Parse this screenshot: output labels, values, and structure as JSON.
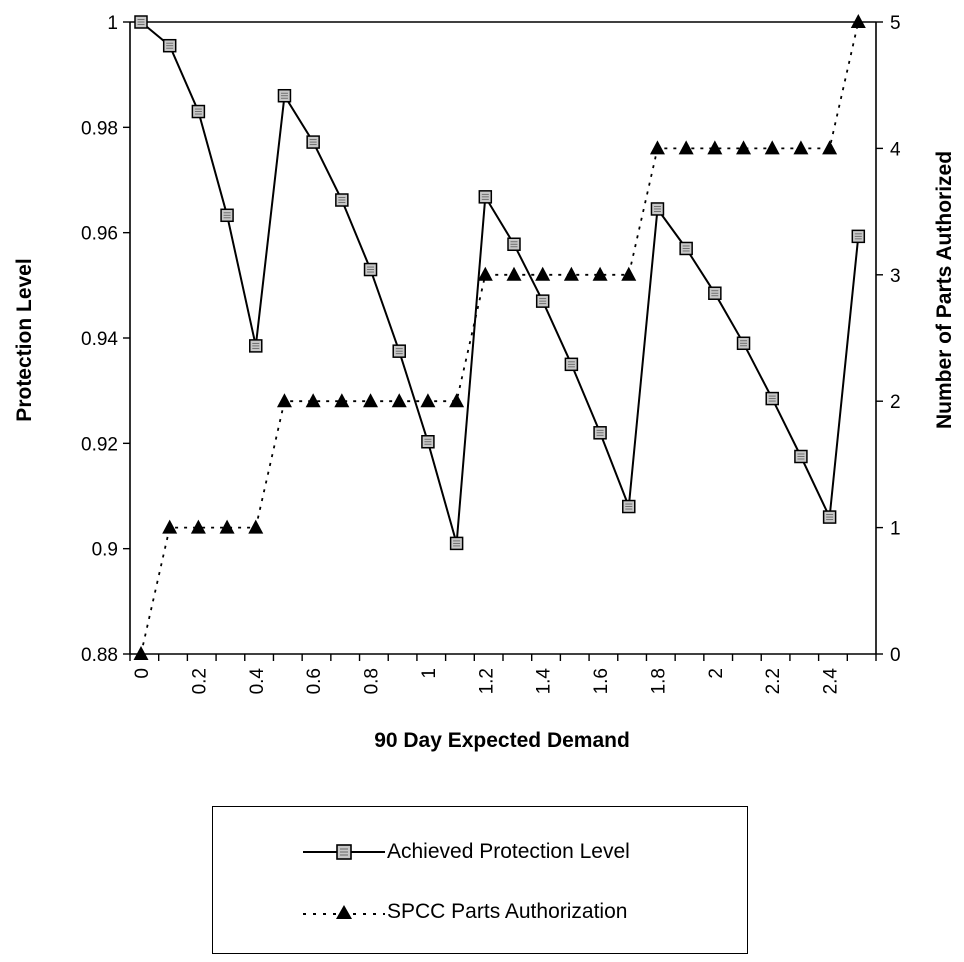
{
  "chart_data": {
    "type": "line",
    "xlabel": "90 Day Expected Demand",
    "ylabel_left": "Protection Level",
    "ylabel_right": "Number of Parts Authorized",
    "x": [
      0,
      0.1,
      0.2,
      0.3,
      0.4,
      0.5,
      0.6,
      0.7,
      0.8,
      0.9,
      1.0,
      1.1,
      1.2,
      1.3,
      1.4,
      1.5,
      1.6,
      1.7,
      1.8,
      1.9,
      2.0,
      2.1,
      2.2,
      2.3,
      2.4,
      2.5
    ],
    "x_tick_labels": [
      "0",
      "0.2",
      "0.4",
      "0.6",
      "0.8",
      "1",
      "1.2",
      "1.4",
      "1.6",
      "1.8",
      "2",
      "2.2",
      "2.4"
    ],
    "y_left_ticks": [
      "0.88",
      "0.9",
      "0.92",
      "0.94",
      "0.96",
      "0.98",
      "1"
    ],
    "y_right_ticks": [
      "0",
      "1",
      "2",
      "3",
      "4",
      "5"
    ],
    "ylim_left": [
      0.88,
      1.0
    ],
    "ylim_right": [
      0,
      5
    ],
    "grid": false,
    "series": [
      {
        "name": "Achieved Protection Level",
        "axis": "left",
        "style": "solid-square-markers",
        "values": [
          1.0,
          0.9955,
          0.983,
          0.9633,
          0.9385,
          0.986,
          0.9772,
          0.9662,
          0.953,
          0.9375,
          0.9203,
          0.901,
          0.9668,
          0.9578,
          0.947,
          0.935,
          0.922,
          0.908,
          0.9645,
          0.957,
          0.9485,
          0.939,
          0.9285,
          0.9175,
          0.906,
          0.9593
        ]
      },
      {
        "name": "SPCC Parts Authorization",
        "axis": "right",
        "style": "dotted-triangle-markers",
        "values": [
          0,
          1,
          1,
          1,
          1,
          2,
          2,
          2,
          2,
          2,
          2,
          2,
          3,
          3,
          3,
          3,
          3,
          3,
          4,
          4,
          4,
          4,
          4,
          4,
          4,
          5
        ]
      }
    ],
    "legend": {
      "position": "bottom-center",
      "entries": [
        "Achieved Protection Level",
        "SPCC Parts Authorization"
      ]
    }
  }
}
